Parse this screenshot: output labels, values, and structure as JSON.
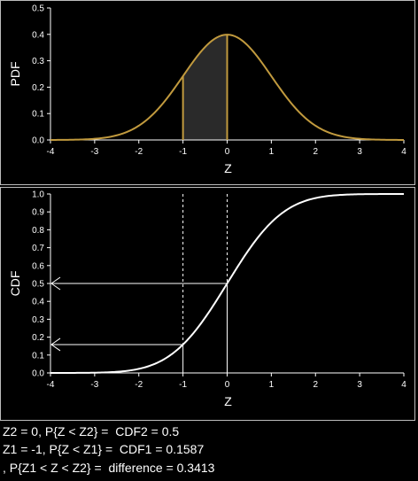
{
  "chart_data": [
    {
      "type": "line",
      "panel": "pdf",
      "xlabel": "Z",
      "ylabel": "PDF",
      "xlim": [
        -4,
        4
      ],
      "ylim": [
        0,
        0.5
      ],
      "xticks": [
        -4,
        -3,
        -2,
        -1,
        0,
        1,
        2,
        3,
        4
      ],
      "yticks": [
        0.0,
        0.1,
        0.2,
        0.3,
        0.4,
        0.5
      ],
      "ytick_labels": [
        "0.0",
        "0.1",
        "0.2",
        "0.3",
        "0.4",
        "0.5"
      ],
      "series": [
        {
          "x": [
            -4,
            -3.5,
            -3,
            -2.5,
            -2,
            -1.5,
            -1,
            -0.5,
            0,
            0.5,
            1,
            1.5,
            2,
            2.5,
            3,
            3.5,
            4
          ],
          "y": [
            0.0001,
            0.0009,
            0.0044,
            0.0175,
            0.054,
            0.1295,
            0.242,
            0.3521,
            0.3989,
            0.3521,
            0.242,
            0.1295,
            0.054,
            0.0175,
            0.0044,
            0.0009,
            0.0001
          ],
          "color": "#c19a3e"
        }
      ],
      "shaded_region": {
        "from": -1,
        "to": 0,
        "color": "#2a2a2a"
      },
      "vlines": [
        {
          "x": -1,
          "y": 0.242,
          "color": "#c19a3e"
        },
        {
          "x": 0,
          "y": 0.3989,
          "color": "#c19a3e"
        }
      ],
      "grid": false
    },
    {
      "type": "line",
      "panel": "cdf",
      "xlabel": "Z",
      "ylabel": "CDF",
      "xlim": [
        -4,
        4
      ],
      "ylim": [
        0,
        1
      ],
      "xticks": [
        -4,
        -3,
        -2,
        -1,
        0,
        1,
        2,
        3,
        4
      ],
      "yticks": [
        0.0,
        0.1,
        0.2,
        0.3,
        0.4,
        0.5,
        0.6,
        0.7,
        0.8,
        0.9,
        1.0
      ],
      "ytick_labels": [
        "0.0",
        "0.1",
        "0.2",
        "0.3",
        "0.4",
        "0.5",
        "0.6",
        "0.7",
        "0.8",
        "0.9",
        "1.0"
      ],
      "series": [
        {
          "x": [
            -4,
            -3.5,
            -3,
            -2.5,
            -2,
            -1.5,
            -1,
            -0.5,
            0,
            0.5,
            1,
            1.5,
            2,
            2.5,
            3,
            3.5,
            4
          ],
          "y": [
            0.0,
            0.0002,
            0.0013,
            0.0062,
            0.0228,
            0.0668,
            0.1587,
            0.3085,
            0.5,
            0.6915,
            0.8413,
            0.9332,
            0.9772,
            0.9938,
            0.9987,
            0.9998,
            1.0
          ],
          "color": "#ffffff"
        }
      ],
      "markers": [
        {
          "x": 0,
          "y": 0.5
        },
        {
          "x": -1,
          "y": 0.1587
        }
      ],
      "grid": false
    }
  ],
  "captions": {
    "line1": "Z2 = 0, P{Z < Z2} =  CDF2 = 0.5",
    "line2": "Z1 = -1, P{Z < Z1} =  CDF1 = 0.1587",
    "line3": ", P{Z1 < Z < Z2} =  difference = 0.3413"
  }
}
